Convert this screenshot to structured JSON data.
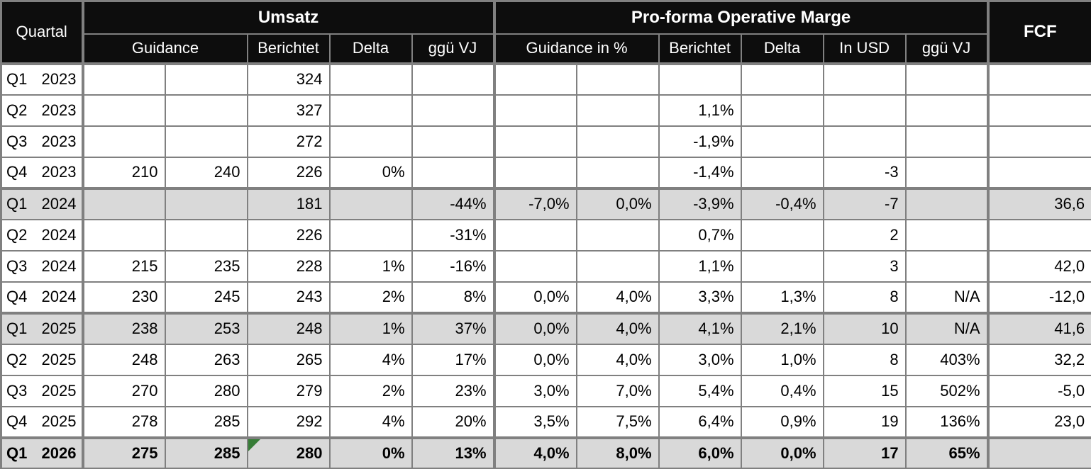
{
  "colors": {
    "grid": "#808080",
    "header_bg": "#0d0d0d",
    "header_text": "#ffffff",
    "highlight_row": "#d9d9d9",
    "flag_green": "#377d37"
  },
  "table": {
    "header": {
      "quartal": "Quartal",
      "umsatz": "Umsatz",
      "marge": "Pro-forma Operative Marge",
      "fcf": "FCF",
      "sub": {
        "guidance": "Guidance",
        "berichtet": "Berichtet",
        "delta": "Delta",
        "ggue_vj": "ggü VJ",
        "guidance_pct": "Guidance in %",
        "berichtet2": "Berichtet",
        "delta2": "Delta",
        "in_usd": "In USD",
        "ggue_vj2": "ggü VJ"
      }
    },
    "rows": [
      {
        "q": "Q1",
        "year": "2023",
        "highlight": false,
        "bold": false,
        "cells": [
          "",
          "",
          "324",
          "",
          "",
          "",
          "",
          "",
          "",
          "",
          "",
          ""
        ]
      },
      {
        "q": "Q2",
        "year": "2023",
        "highlight": false,
        "bold": false,
        "cells": [
          "",
          "",
          "327",
          "",
          "",
          "",
          "",
          "1,1%",
          "",
          "",
          "",
          ""
        ]
      },
      {
        "q": "Q3",
        "year": "2023",
        "highlight": false,
        "bold": false,
        "cells": [
          "",
          "",
          "272",
          "",
          "",
          "",
          "",
          "-1,9%",
          "",
          "",
          "",
          ""
        ]
      },
      {
        "q": "Q4",
        "year": "2023",
        "highlight": false,
        "bold": false,
        "cells": [
          "210",
          "240",
          "226",
          "0%",
          "",
          "",
          "",
          "-1,4%",
          "",
          "-3",
          "",
          ""
        ]
      },
      {
        "q": "Q1",
        "year": "2024",
        "highlight": true,
        "bold": false,
        "cells": [
          "",
          "",
          "181",
          "",
          "-44%",
          "-7,0%",
          "0,0%",
          "-3,9%",
          "-0,4%",
          "-7",
          "",
          "36,6"
        ]
      },
      {
        "q": "Q2",
        "year": "2024",
        "highlight": false,
        "bold": false,
        "cells": [
          "",
          "",
          "226",
          "",
          "-31%",
          "",
          "",
          "0,7%",
          "",
          "2",
          "",
          ""
        ]
      },
      {
        "q": "Q3",
        "year": "2024",
        "highlight": false,
        "bold": false,
        "cells": [
          "215",
          "235",
          "228",
          "1%",
          "-16%",
          "",
          "",
          "1,1%",
          "",
          "3",
          "",
          "42,0"
        ]
      },
      {
        "q": "Q4",
        "year": "2024",
        "highlight": false,
        "bold": false,
        "cells": [
          "230",
          "245",
          "243",
          "2%",
          "8%",
          "0,0%",
          "4,0%",
          "3,3%",
          "1,3%",
          "8",
          "N/A",
          "-12,0"
        ]
      },
      {
        "q": "Q1",
        "year": "2025",
        "highlight": true,
        "bold": false,
        "cells": [
          "238",
          "253",
          "248",
          "1%",
          "37%",
          "0,0%",
          "4,0%",
          "4,1%",
          "2,1%",
          "10",
          "N/A",
          "41,6"
        ]
      },
      {
        "q": "Q2",
        "year": "2025",
        "highlight": false,
        "bold": false,
        "cells": [
          "248",
          "263",
          "265",
          "4%",
          "17%",
          "0,0%",
          "4,0%",
          "3,0%",
          "1,0%",
          "8",
          "403%",
          "32,2"
        ]
      },
      {
        "q": "Q3",
        "year": "2025",
        "highlight": false,
        "bold": false,
        "cells": [
          "270",
          "280",
          "279",
          "2%",
          "23%",
          "3,0%",
          "7,0%",
          "5,4%",
          "0,4%",
          "15",
          "502%",
          "-5,0"
        ]
      },
      {
        "q": "Q4",
        "year": "2025",
        "highlight": false,
        "bold": false,
        "cells": [
          "278",
          "285",
          "292",
          "4%",
          "20%",
          "3,5%",
          "7,5%",
          "6,4%",
          "0,9%",
          "19",
          "136%",
          "23,0"
        ]
      },
      {
        "q": "Q1",
        "year": "2026",
        "highlight": true,
        "bold": true,
        "flag": 2,
        "not_bold": [
          10
        ],
        "cells": [
          "275",
          "285",
          "280",
          "0%",
          "13%",
          "4,0%",
          "8,0%",
          "6,0%",
          "0,0%",
          "17",
          "65%",
          ""
        ]
      }
    ]
  }
}
